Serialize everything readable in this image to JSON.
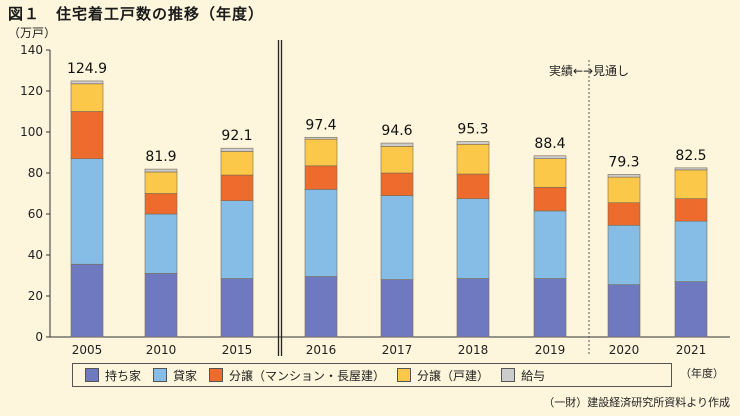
{
  "title": "図１　住宅着工戸数の推移（年度）",
  "unit": "（万戸）",
  "source": "（一財）建設経済研究所資料より作成",
  "year_unit": "（年度）",
  "forecast_label": "実績←→見通し",
  "colors": {
    "持ち家": "#6f79bf",
    "貸家": "#85bde6",
    "分譲（マンション・長屋建）": "#ed6b2c",
    "分譲（戸建）": "#fbc84a",
    "給与": "#cccccc"
  },
  "chart_data": {
    "type": "bar",
    "stacked": true,
    "categories": [
      "2005",
      "2010",
      "2015",
      "2016",
      "2017",
      "2018",
      "2019",
      "2020",
      "2021"
    ],
    "ylim": [
      0,
      140
    ],
    "yticks": [
      0,
      20,
      40,
      60,
      80,
      100,
      120,
      140
    ],
    "totals": [
      124.9,
      81.9,
      92.1,
      97.4,
      94.6,
      95.3,
      88.4,
      79.3,
      82.5
    ],
    "total_labels": [
      "124.9",
      "81.9",
      "92.1",
      "97.4",
      "94.6",
      "95.3",
      "88.4",
      "79.3",
      "82.5"
    ],
    "series": [
      {
        "name": "持ち家",
        "values": [
          35.5,
          31,
          28.5,
          29.5,
          28,
          28.5,
          28.5,
          25.5,
          27
        ]
      },
      {
        "name": "貸家",
        "values": [
          51.5,
          29,
          38,
          42.5,
          41,
          39,
          33,
          29,
          29.5
        ]
      },
      {
        "name": "分譲（マンション・長屋建）",
        "values": [
          23,
          10,
          12.5,
          11.5,
          11,
          12,
          11.5,
          11,
          11
        ]
      },
      {
        "name": "分譲（戸建）",
        "values": [
          13.5,
          10.5,
          11.5,
          13,
          13,
          14.5,
          14,
          12.5,
          14
        ]
      },
      {
        "name": "給与",
        "values": [
          1.4,
          1.4,
          1.6,
          0.9,
          1.6,
          1.3,
          1.4,
          1.3,
          1.0
        ]
      }
    ]
  }
}
